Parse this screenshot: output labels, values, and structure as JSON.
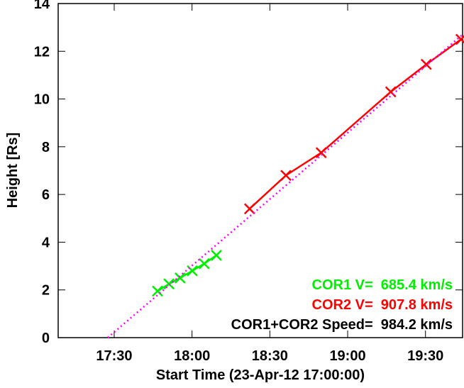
{
  "chart_data": {
    "type": "line",
    "x_label": "Start Time (23-Apr-12 17:00:00)",
    "y_label": "Height [Rs]",
    "xlim": [
      8.4,
      164.3
    ],
    "ylim": [
      0,
      14
    ],
    "xticks": [
      {
        "value": 30,
        "label": "17:30"
      },
      {
        "value": 60,
        "label": "18:00"
      },
      {
        "value": 90,
        "label": "18:30"
      },
      {
        "value": 120,
        "label": "19:00"
      },
      {
        "value": 150,
        "label": "19:30"
      }
    ],
    "yticks": [
      0,
      2,
      4,
      6,
      8,
      10,
      12,
      14
    ],
    "series": [
      {
        "color": "#00ee00",
        "marker": "x",
        "x": [
          46.7,
          51.1,
          55.4,
          60.1,
          64.7,
          69.4
        ],
        "values": [
          1.95,
          2.25,
          2.5,
          2.8,
          3.1,
          3.45
        ]
      },
      {
        "color": "#ff0000",
        "marker": "x",
        "x": [
          82.2,
          96.2,
          109.8,
          136.6,
          150.3,
          163.7
        ],
        "values": [
          5.4,
          6.8,
          7.75,
          10.3,
          11.45,
          12.5
        ]
      },
      {
        "color": "#ff00ff",
        "style": "dotted",
        "x": [
          27.5,
          164.3
        ],
        "values": [
          0,
          12.7
        ]
      }
    ],
    "annotations": [
      {
        "text": "COR1 V=  685.4 km/s",
        "color": "#00ee00"
      },
      {
        "text": "COR2 V=  907.8 km/s",
        "color": "#ff0000"
      },
      {
        "text": "COR1+COR2 Speed=  984.2 km/s",
        "color": "#000000"
      }
    ]
  }
}
